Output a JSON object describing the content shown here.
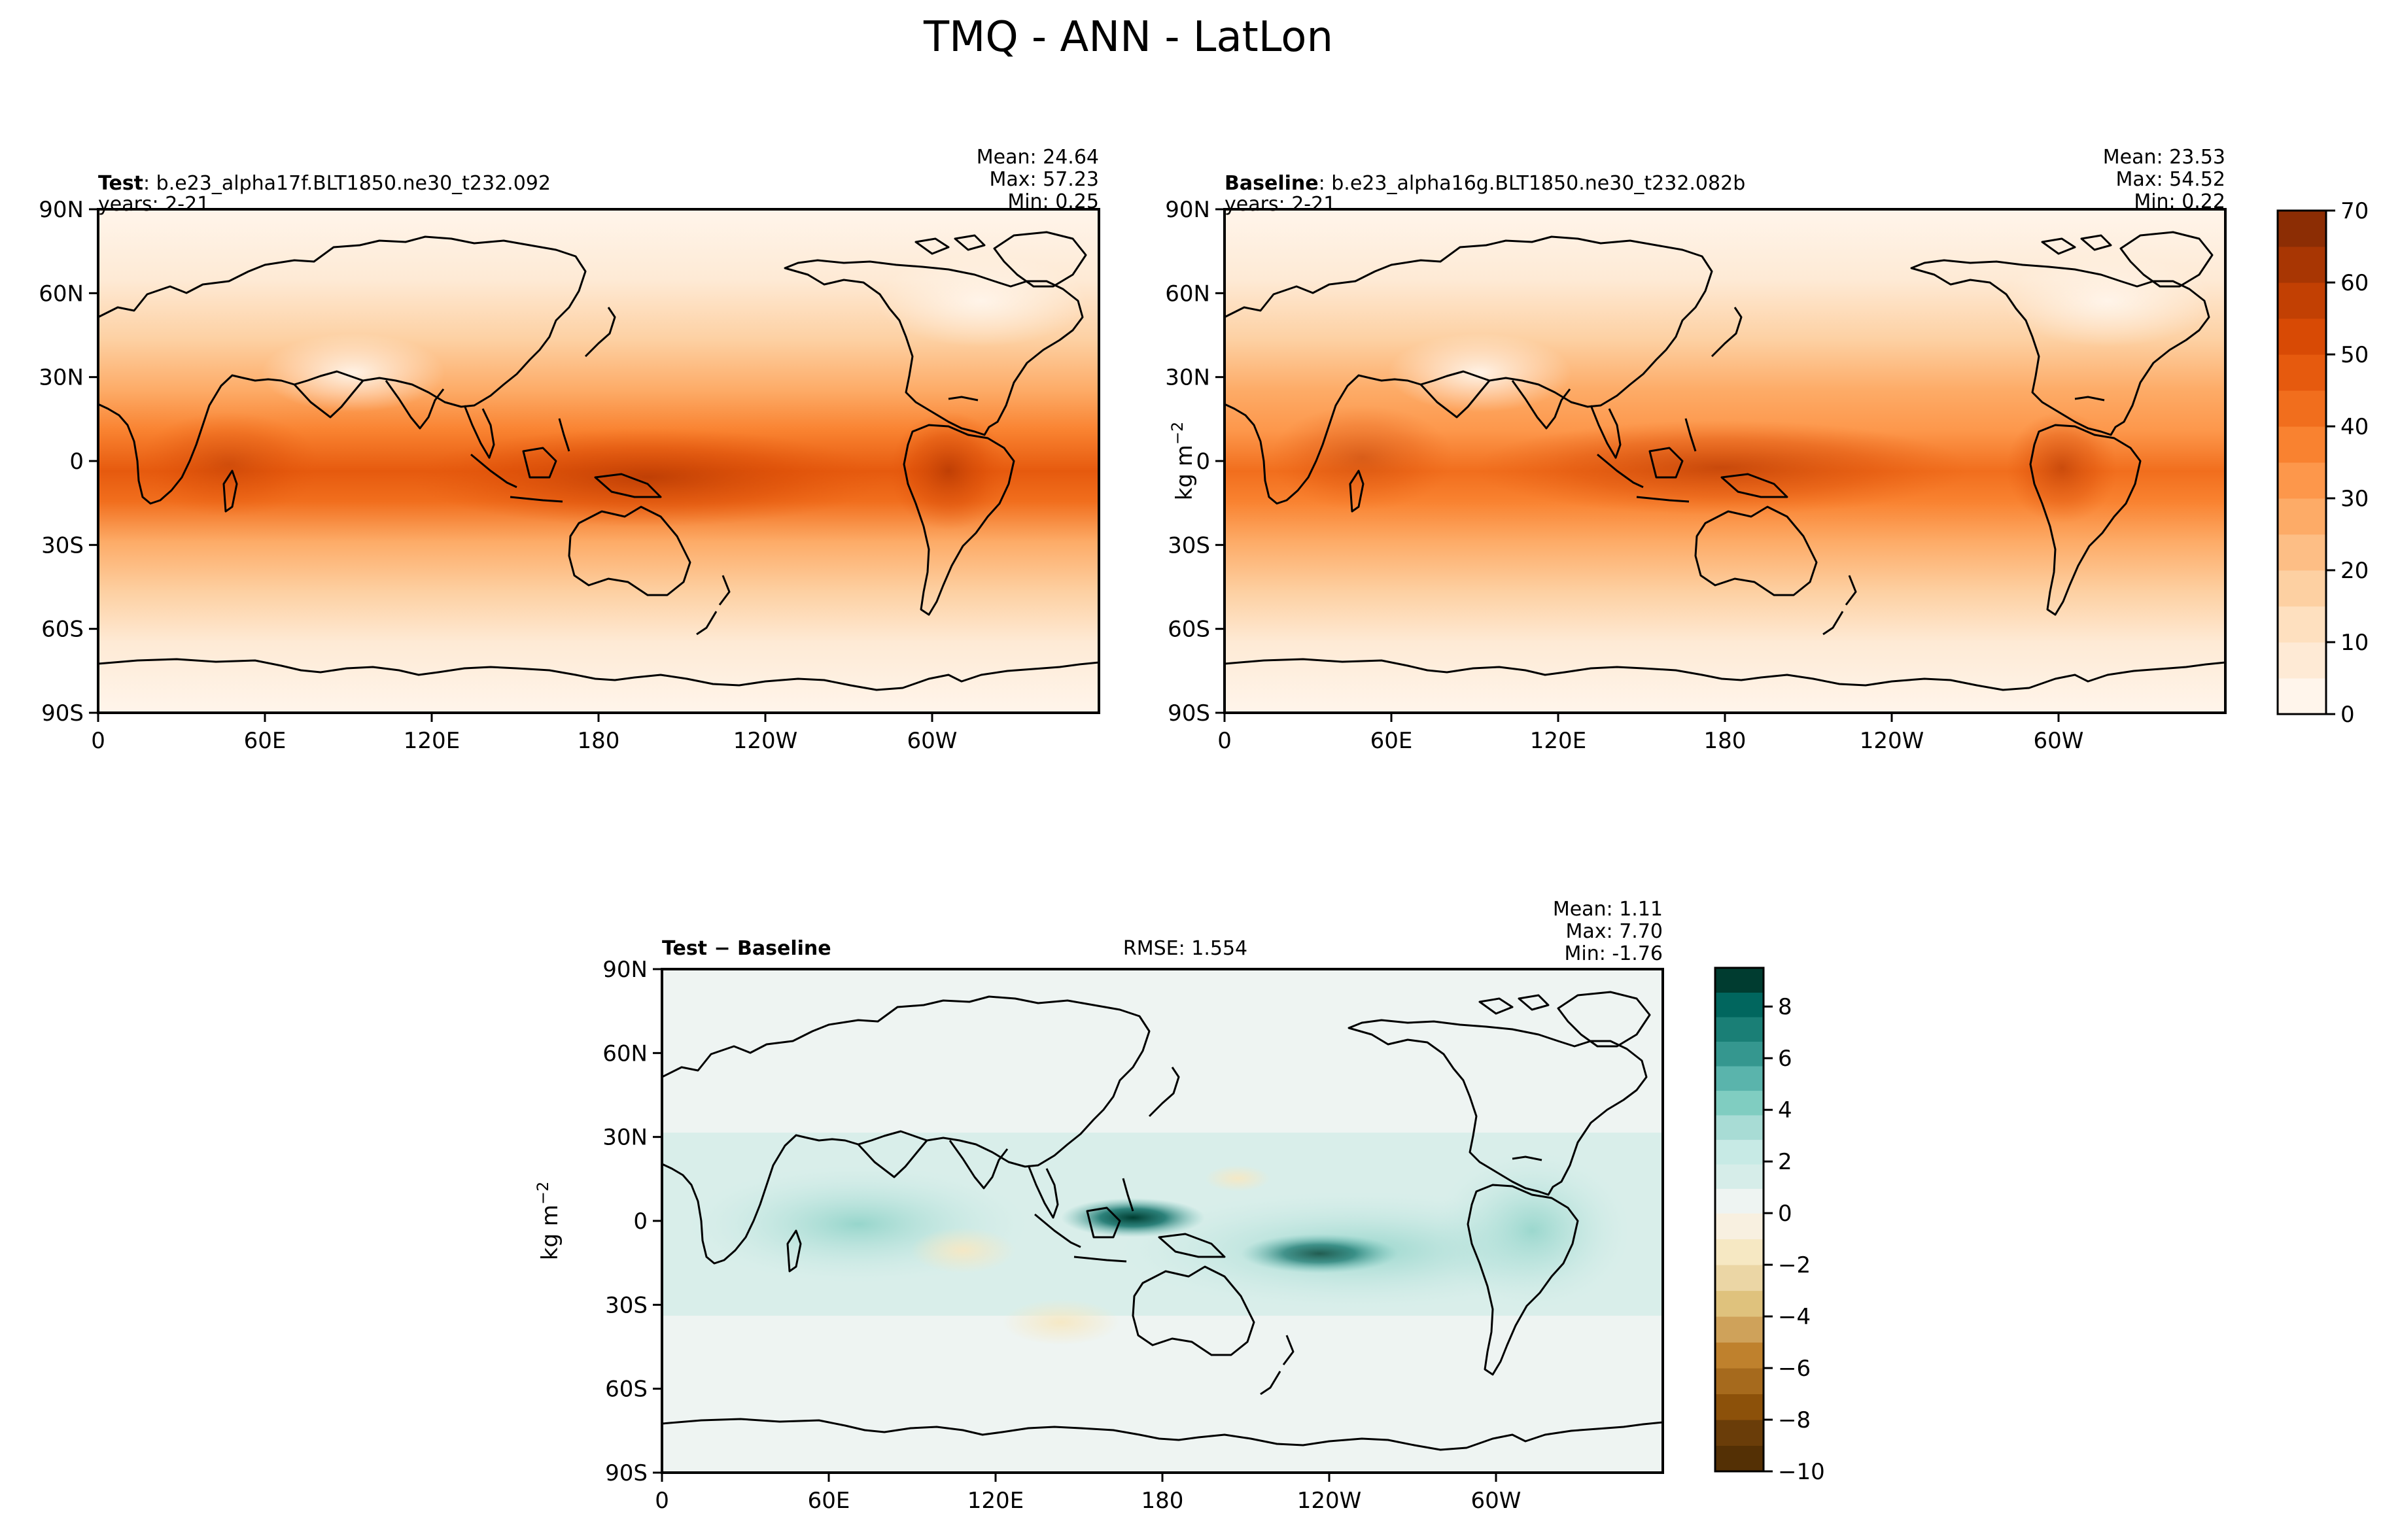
{
  "figure": {
    "title": "TMQ - ANN - LatLon"
  },
  "colors": {
    "precip_scale": [
      "#fff5eb",
      "#feead5",
      "#fee0bf",
      "#fdd0a2",
      "#fdbe85",
      "#fdab67",
      "#fd974b",
      "#f98230",
      "#f16e1d",
      "#e65a0e",
      "#d84a05",
      "#c24003",
      "#a83603",
      "#8c2d04"
    ],
    "diff_negative": [
      "#543005",
      "#6a3d09",
      "#8c510a",
      "#a66a1d",
      "#bf812d",
      "#cfa25a",
      "#dfc27d",
      "#ebd6a5",
      "#f6e8c3",
      "#f8f0e0"
    ],
    "diff_positive": [
      "#eef4f2",
      "#d6ede9",
      "#c7eae5",
      "#a8dcd5",
      "#80cdc1",
      "#5ab4ac",
      "#35978f",
      "#1a7f76",
      "#01665e",
      "#003c30"
    ],
    "land_outline": "#000000"
  },
  "chart_data": [
    {
      "type": "heatmap",
      "panel": "test",
      "label_bold": "Test",
      "label_rest": ": b.e23_alpha17f.BLT1850.ne30_t232.092",
      "years": "years: 2-21",
      "stats": [
        "Mean: 24.64",
        "Max: 57.23",
        "Min:  0.25"
      ],
      "xticks": [
        "0",
        "60E",
        "120E",
        "180",
        "120W",
        "60W"
      ],
      "yticks": [
        "90N",
        "60N",
        "30N",
        "0",
        "30S",
        "60S",
        "90S"
      ],
      "xlim": [
        0,
        360
      ],
      "ylim": [
        -90,
        90
      ]
    },
    {
      "type": "heatmap",
      "panel": "baseline",
      "label_bold": "Baseline",
      "label_rest": ": b.e23_alpha16g.BLT1850.ne30_t232.082b",
      "years": "years: 2-21",
      "stats": [
        "Mean: 23.53",
        "Max: 54.52",
        "Min:  0.22"
      ],
      "xticks": [
        "0",
        "60E",
        "120E",
        "180",
        "120W",
        "60W"
      ],
      "yticks": [
        "90N",
        "60N",
        "30N",
        "0",
        "30S",
        "60S",
        "90S"
      ],
      "xlim": [
        0,
        360
      ],
      "ylim": [
        -90,
        90
      ],
      "colorbar": {
        "label": "kg m",
        "label_sup": "−2",
        "ticks": [
          "0",
          "10",
          "20",
          "30",
          "40",
          "50",
          "60",
          "70"
        ],
        "range": [
          0,
          70
        ]
      }
    },
    {
      "type": "heatmap",
      "panel": "diff",
      "label_bold": "Test − Baseline",
      "rmse": "RMSE: 1.554",
      "stats": [
        "Mean:  1.11",
        "Max:  7.70",
        "Min: -1.76"
      ],
      "xticks": [
        "0",
        "60E",
        "120E",
        "180",
        "120W",
        "60W"
      ],
      "yticks": [
        "90N",
        "60N",
        "30N",
        "0",
        "30S",
        "60S",
        "90S"
      ],
      "xlim": [
        0,
        360
      ],
      "ylim": [
        -90,
        90
      ],
      "ylabel": "kg m",
      "ylabel_sup": "−2",
      "colorbar": {
        "ticks": [
          "8",
          "6",
          "4",
          "2",
          "0",
          "−2",
          "−4",
          "−6",
          "−8",
          "−10"
        ],
        "range": [
          -10,
          9.5
        ]
      }
    }
  ]
}
